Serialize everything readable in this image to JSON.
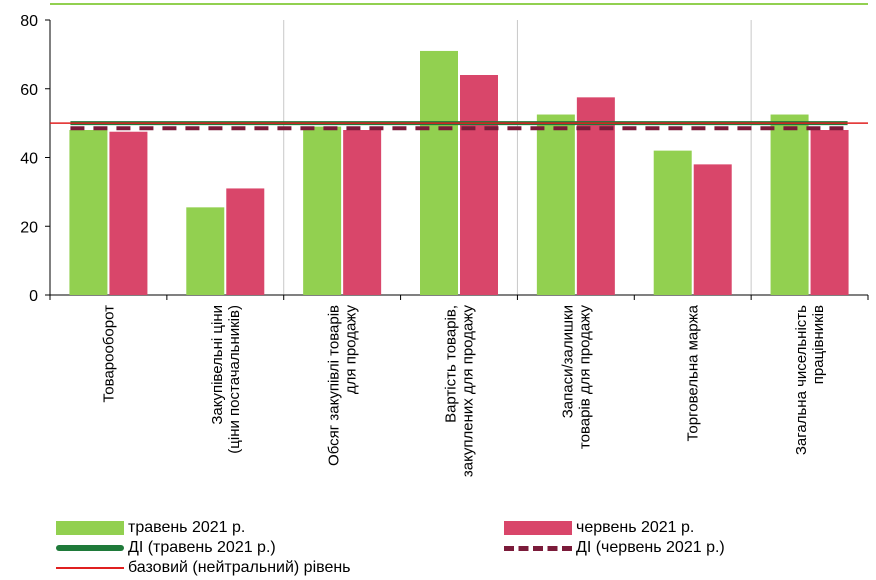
{
  "chart_data": {
    "type": "bar",
    "categories": [
      [
        "Товарооборот"
      ],
      [
        "Закупівельні ціни",
        "(ціни постачальників)"
      ],
      [
        "Обсяг закупівлі товарів",
        "для продажу"
      ],
      [
        "Вартість товарів,",
        "закуплених для продажу"
      ],
      [
        "Запаси/залишки",
        "товарів для продажу"
      ],
      [
        "Торговельна маржа"
      ],
      [
        "Загальна чисельність",
        "працівників"
      ]
    ],
    "series": [
      {
        "name": "травень 2021 р.",
        "color": "#92d050",
        "values": [
          48,
          25.5,
          49,
          71,
          52.5,
          42,
          52.5
        ]
      },
      {
        "name": "червень 2021 р.",
        "color": "#d9466a",
        "values": [
          47.5,
          31,
          48,
          64,
          57.5,
          38,
          48
        ]
      }
    ],
    "lines": [
      {
        "name": "ДІ (травень 2021 р.)",
        "value": 50,
        "color": "#1f7a3a",
        "style": "solid"
      },
      {
        "name": "ДІ (червень 2021 р.)",
        "value": 48.5,
        "color": "#7b1b3a",
        "style": "dashed"
      },
      {
        "name": "базовий (нейтральний) рівень",
        "value": 50,
        "color": "#e02020",
        "style": "thin"
      }
    ],
    "yticks": [
      0,
      20,
      40,
      60,
      80
    ],
    "ylim": [
      0,
      80
    ],
    "grid": true,
    "legend": "bottom"
  }
}
